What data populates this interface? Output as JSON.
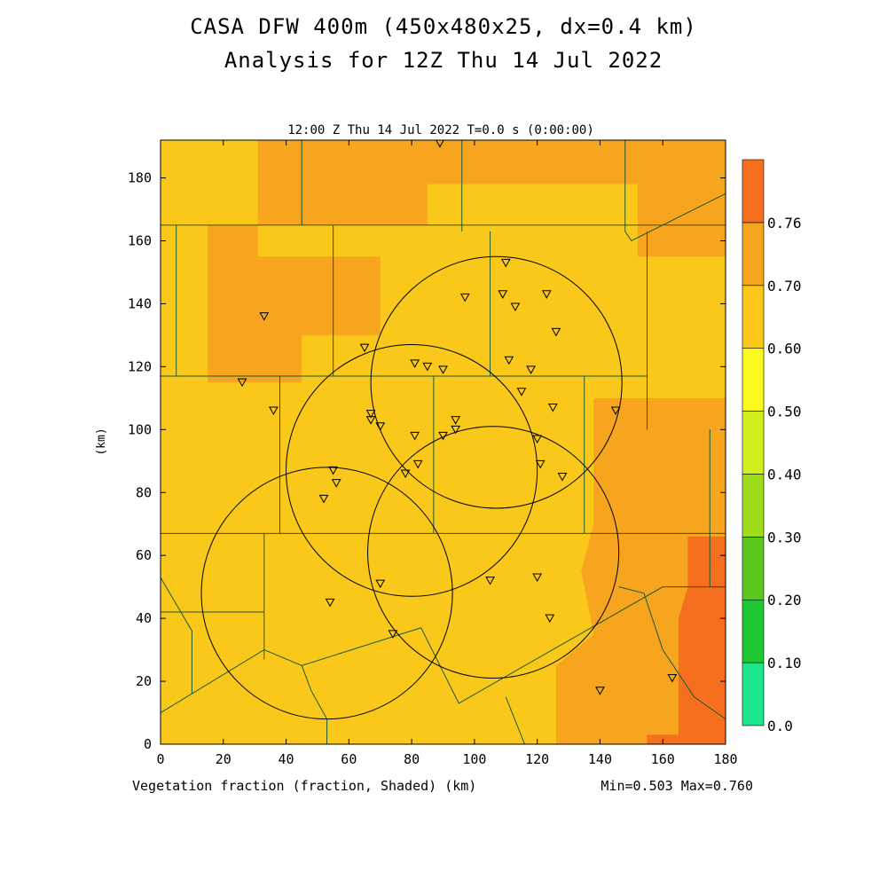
{
  "header": {
    "title_line1": "CASA DFW 400m (450x480x25, dx=0.4 km)",
    "title_line2": "Analysis for 12Z Thu 14 Jul 2022"
  },
  "plot": {
    "time_label": "12:00 Z Thu 14 Jul 2022   T=0.0 s (0:00:00)",
    "footer_left": "Vegetation fraction (fraction, Shaded)  (km)",
    "footer_right": "Min=0.503 Max=0.760"
  },
  "colors": {
    "band_0.50": "#fac81a",
    "band_0.60": "#f7a51e",
    "band_0.70": "#f56f1e",
    "county_line": "#1e5a32",
    "radar_ring": "#000000"
  },
  "chart_data": {
    "type": "heatmap",
    "variable": "Vegetation fraction",
    "xlabel": "",
    "ylabel": "(km)",
    "xlim": [
      0,
      180
    ],
    "ylim": [
      0,
      192
    ],
    "x_ticks": [
      0,
      20,
      40,
      60,
      80,
      100,
      120,
      140,
      160,
      180
    ],
    "y_ticks": [
      0,
      20,
      40,
      60,
      80,
      100,
      120,
      140,
      160,
      180
    ],
    "min": 0.503,
    "max": 0.76,
    "colorbar": {
      "levels": [
        "0.0",
        "0.10",
        "0.20",
        "0.30",
        "0.40",
        "0.50",
        "0.60",
        "0.70",
        "0.76"
      ],
      "colors": [
        "#1ee68c",
        "#1ec832",
        "#5ac81e",
        "#a0dc1e",
        "#d2f01e",
        "#fafa1e",
        "#fac81a",
        "#f7a51e",
        "#f56f1e"
      ]
    },
    "regions": [
      {
        "value": 0.55,
        "band": "0.50",
        "poly": [
          [
            0,
            0
          ],
          [
            180,
            0
          ],
          [
            180,
            192
          ],
          [
            0,
            192
          ]
        ]
      },
      {
        "value": 0.65,
        "band": "0.60",
        "poly": [
          [
            31,
            192
          ],
          [
            180,
            192
          ],
          [
            180,
            155
          ],
          [
            152,
            155
          ],
          [
            152,
            178
          ],
          [
            85,
            178
          ],
          [
            85,
            165
          ],
          [
            15,
            165
          ],
          [
            15,
            115
          ],
          [
            45,
            115
          ],
          [
            45,
            130
          ],
          [
            70,
            130
          ],
          [
            70,
            155
          ],
          [
            31,
            155
          ]
        ]
      },
      {
        "value": 0.65,
        "band": "0.60",
        "poly": [
          [
            138,
            110
          ],
          [
            180,
            110
          ],
          [
            180,
            0
          ],
          [
            126,
            0
          ],
          [
            126,
            25
          ],
          [
            138,
            35
          ],
          [
            134,
            55
          ],
          [
            138,
            70
          ]
        ]
      },
      {
        "value": 0.73,
        "band": "0.70",
        "poly": [
          [
            168,
            66
          ],
          [
            180,
            66
          ],
          [
            180,
            0
          ],
          [
            155,
            0
          ],
          [
            155,
            3
          ],
          [
            165,
            3
          ],
          [
            165,
            40
          ],
          [
            168,
            50
          ]
        ]
      }
    ],
    "radar_rings": [
      {
        "center": [
          107,
          115
        ],
        "radius_km": 40
      },
      {
        "center": [
          80,
          87
        ],
        "radius_km": 40
      },
      {
        "center": [
          53,
          48
        ],
        "radius_km": 40
      },
      {
        "center": [
          106,
          61
        ],
        "radius_km": 40
      }
    ],
    "stations": [
      [
        89,
        191
      ],
      [
        110,
        153
      ],
      [
        97,
        142
      ],
      [
        109,
        143
      ],
      [
        113,
        139
      ],
      [
        123,
        143
      ],
      [
        126,
        131
      ],
      [
        33,
        136
      ],
      [
        65,
        126
      ],
      [
        81,
        121
      ],
      [
        85,
        120
      ],
      [
        90,
        119
      ],
      [
        111,
        122
      ],
      [
        118,
        119
      ],
      [
        26,
        115
      ],
      [
        36,
        106
      ],
      [
        115,
        112
      ],
      [
        125,
        107
      ],
      [
        145,
        106
      ],
      [
        67,
        105
      ],
      [
        67,
        103
      ],
      [
        70,
        101
      ],
      [
        94,
        103
      ],
      [
        94,
        100
      ],
      [
        81,
        98
      ],
      [
        90,
        98
      ],
      [
        120,
        97
      ],
      [
        55,
        87
      ],
      [
        56,
        83
      ],
      [
        78,
        86
      ],
      [
        82,
        89
      ],
      [
        121,
        89
      ],
      [
        128,
        85
      ],
      [
        52,
        78
      ],
      [
        120,
        53
      ],
      [
        105,
        52
      ],
      [
        70,
        51
      ],
      [
        54,
        45
      ],
      [
        124,
        40
      ],
      [
        74,
        35
      ],
      [
        140,
        17
      ],
      [
        163,
        21
      ]
    ],
    "county_lines": [
      [
        [
          0,
          165
        ],
        [
          180,
          165
        ]
      ],
      [
        [
          0,
          165
        ],
        [
          0,
          0
        ]
      ],
      [
        [
          5,
          165
        ],
        [
          5,
          117
        ]
      ],
      [
        [
          0,
          117
        ],
        [
          155,
          117
        ]
      ],
      [
        [
          45,
          192
        ],
        [
          45,
          165
        ]
      ],
      [
        [
          96,
          192
        ],
        [
          96,
          163
        ]
      ],
      [
        [
          148,
          192
        ],
        [
          148,
          163
        ]
      ],
      [
        [
          55,
          165
        ],
        [
          55,
          117
        ]
      ],
      [
        [
          105,
          163
        ],
        [
          105,
          117
        ]
      ],
      [
        [
          155,
          163
        ],
        [
          155,
          100
        ]
      ],
      [
        [
          38,
          117
        ],
        [
          38,
          67
        ]
      ],
      [
        [
          87,
          117
        ],
        [
          87,
          67
        ]
      ],
      [
        [
          135,
          117
        ],
        [
          135,
          67
        ]
      ],
      [
        [
          0,
          67
        ],
        [
          180,
          67
        ]
      ],
      [
        [
          33,
          67
        ],
        [
          33,
          27
        ]
      ],
      [
        [
          0,
          42
        ],
        [
          33,
          42
        ]
      ],
      [
        [
          0,
          10
        ],
        [
          33,
          30
        ],
        [
          45,
          25
        ],
        [
          83,
          37
        ]
      ],
      [
        [
          83,
          37
        ],
        [
          95,
          13
        ],
        [
          160,
          50
        ],
        [
          180,
          50
        ]
      ],
      [
        [
          146,
          50
        ],
        [
          154,
          48
        ],
        [
          160,
          30
        ],
        [
          170,
          15
        ],
        [
          180,
          8
        ]
      ],
      [
        [
          0,
          53
        ],
        [
          10,
          36
        ],
        [
          10,
          16
        ]
      ],
      [
        [
          45,
          25
        ],
        [
          48,
          17
        ],
        [
          53,
          8
        ],
        [
          53,
          0
        ]
      ],
      [
        [
          110,
          15
        ],
        [
          116,
          0
        ]
      ],
      [
        [
          148,
          163
        ],
        [
          150,
          160
        ],
        [
          180,
          175
        ]
      ],
      [
        [
          175,
          100
        ],
        [
          175,
          50
        ],
        [
          180,
          50
        ]
      ]
    ]
  }
}
